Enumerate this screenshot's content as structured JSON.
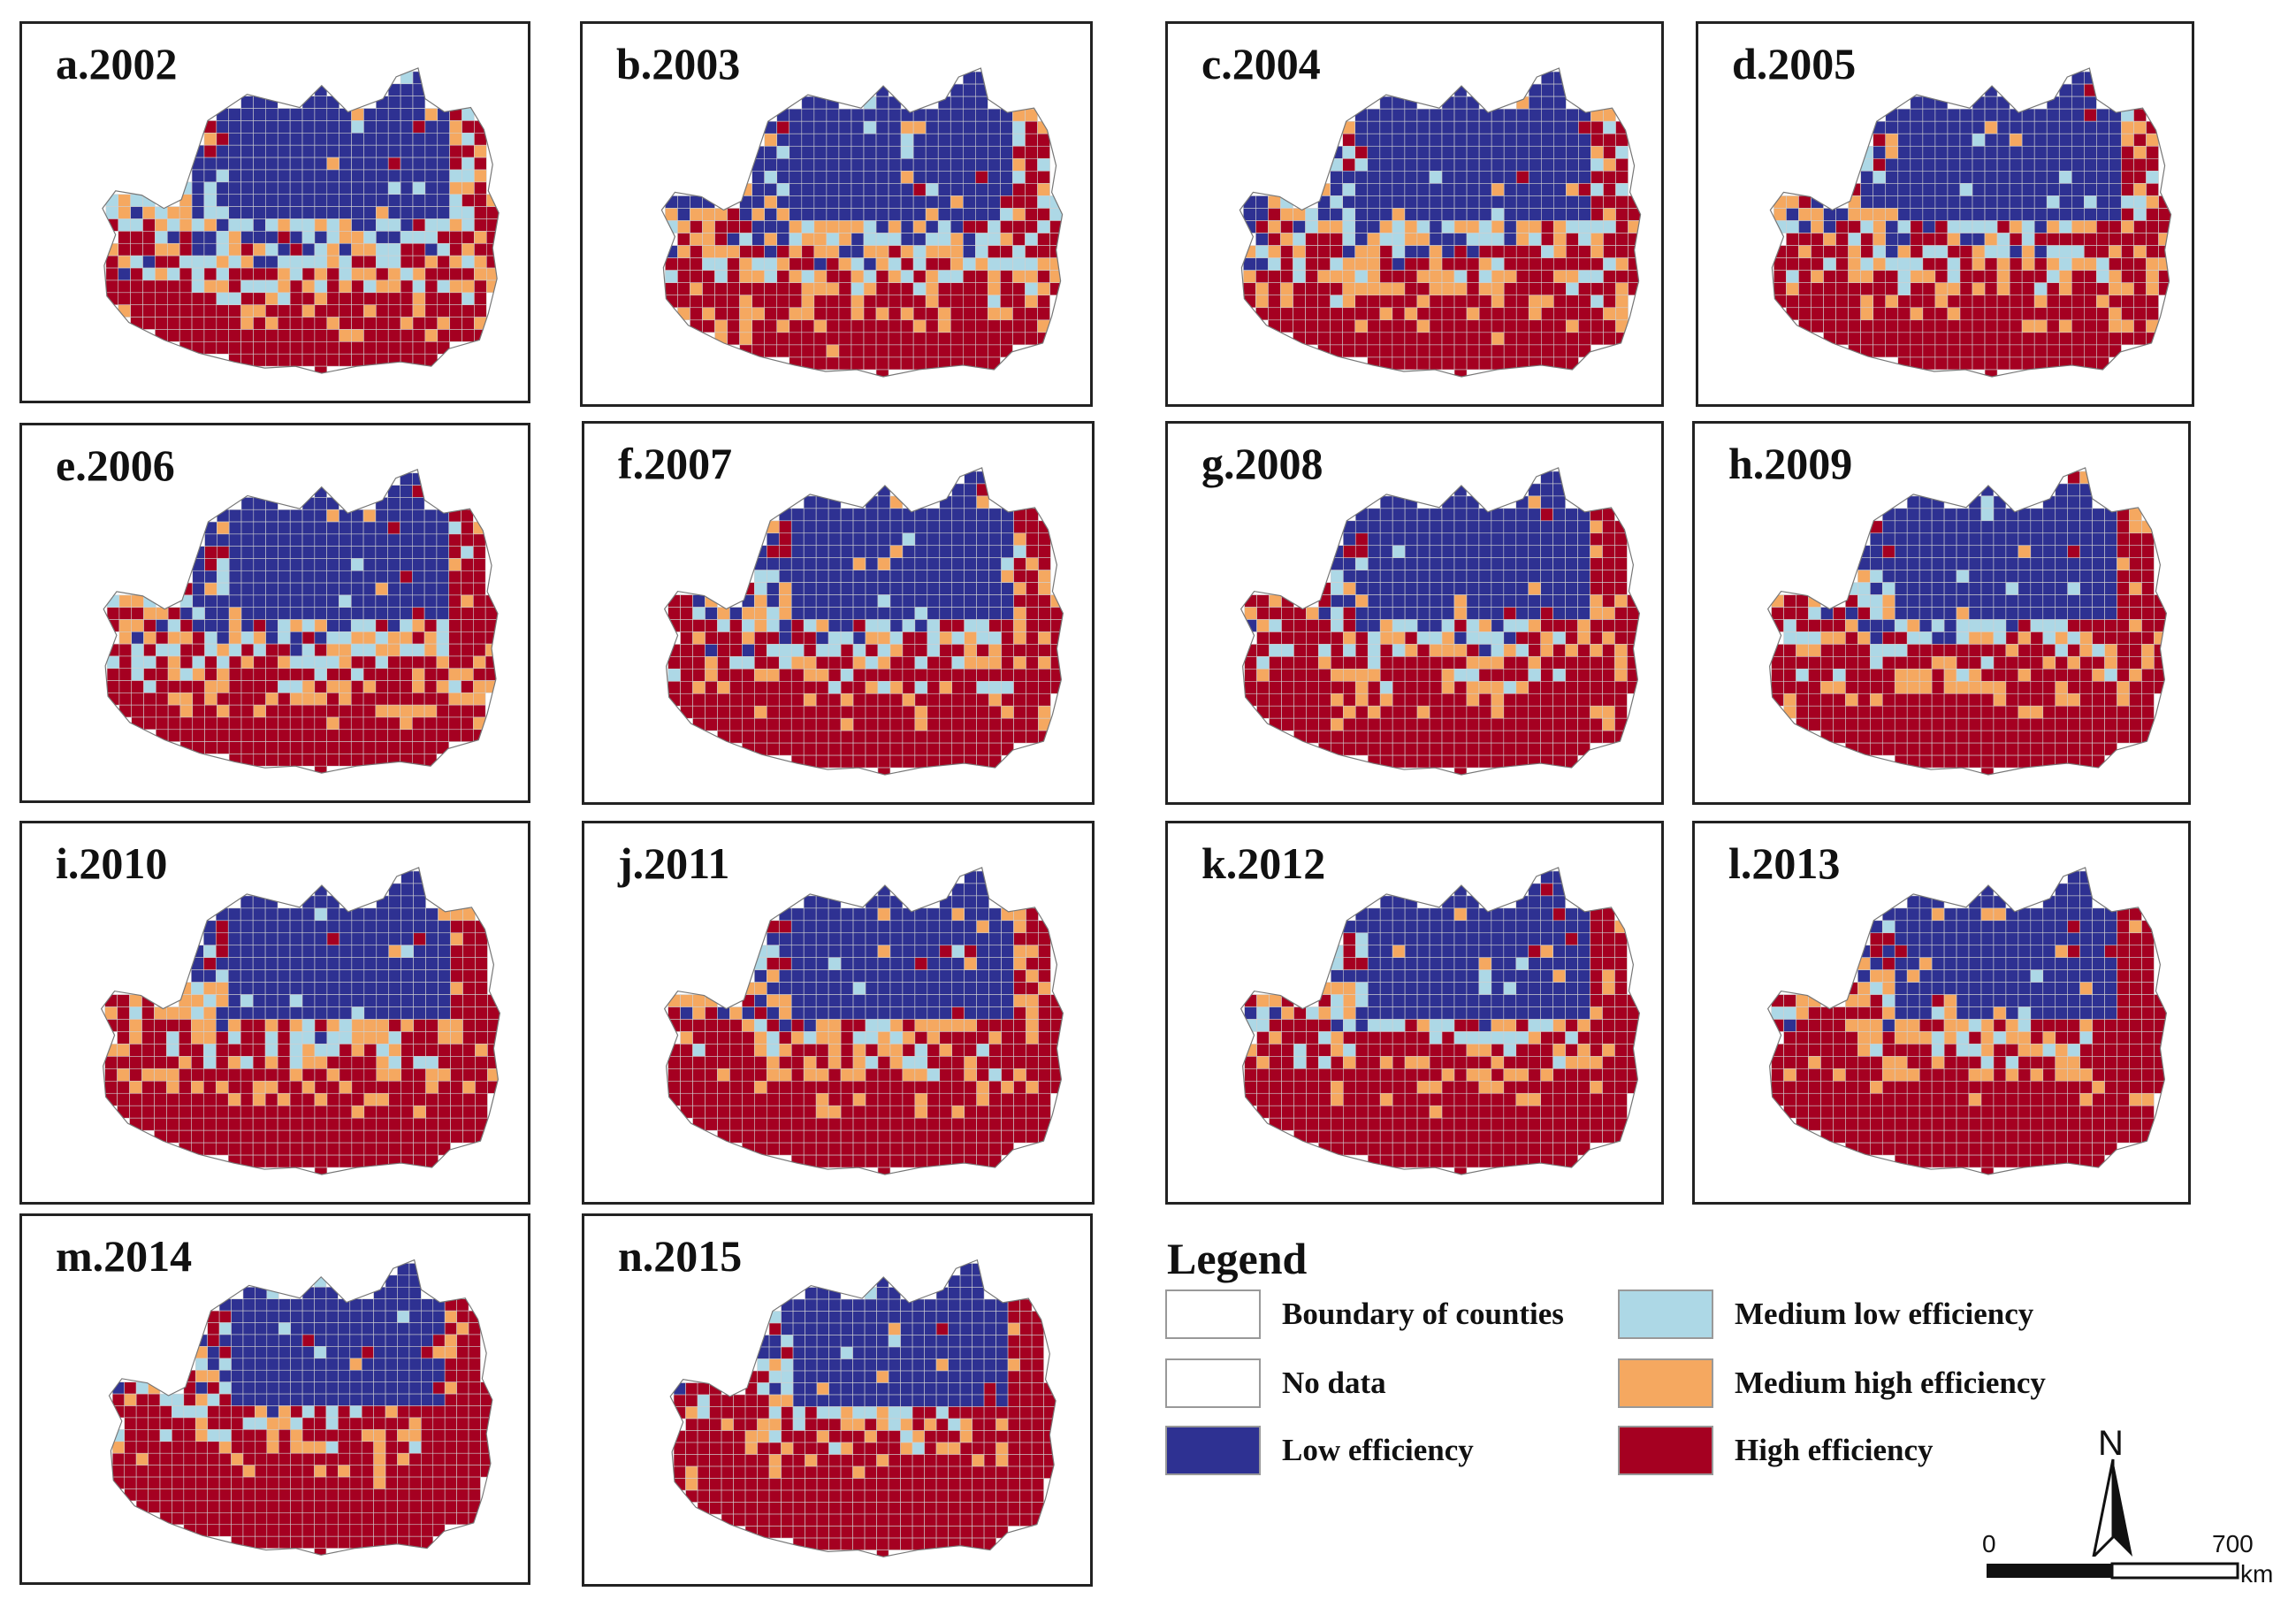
{
  "panels": [
    {
      "label": "a.2002",
      "year": 2002
    },
    {
      "label": "b.2003",
      "year": 2003
    },
    {
      "label": "c.2004",
      "year": 2004
    },
    {
      "label": "d.2005",
      "year": 2005
    },
    {
      "label": "e.2006",
      "year": 2006
    },
    {
      "label": "f.2007",
      "year": 2007
    },
    {
      "label": "g.2008",
      "year": 2008
    },
    {
      "label": "h.2009",
      "year": 2009
    },
    {
      "label": "i.2010",
      "year": 2010
    },
    {
      "label": "j.2011",
      "year": 2011
    },
    {
      "label": "k.2012",
      "year": 2012
    },
    {
      "label": "l.2013",
      "year": 2013
    },
    {
      "label": "m.2014",
      "year": 2014
    },
    {
      "label": "n.2015",
      "year": 2015
    }
  ],
  "legend": {
    "title": "Legend",
    "items": [
      {
        "label": "Boundary of counties",
        "color": "#ffffff"
      },
      {
        "label": "Medium low efficiency",
        "color": "#add8e6"
      },
      {
        "label": "No data",
        "color": "#ffffff"
      },
      {
        "label": "Medium high efficiency",
        "color": "#f5a860"
      },
      {
        "label": "Low efficiency",
        "color": "#2e3192"
      },
      {
        "label": "High efficiency",
        "color": "#a50021"
      }
    ]
  },
  "north_arrow": {
    "letter": "N"
  },
  "scale_bar": {
    "start": "0",
    "end": "700",
    "unit": "km"
  }
}
